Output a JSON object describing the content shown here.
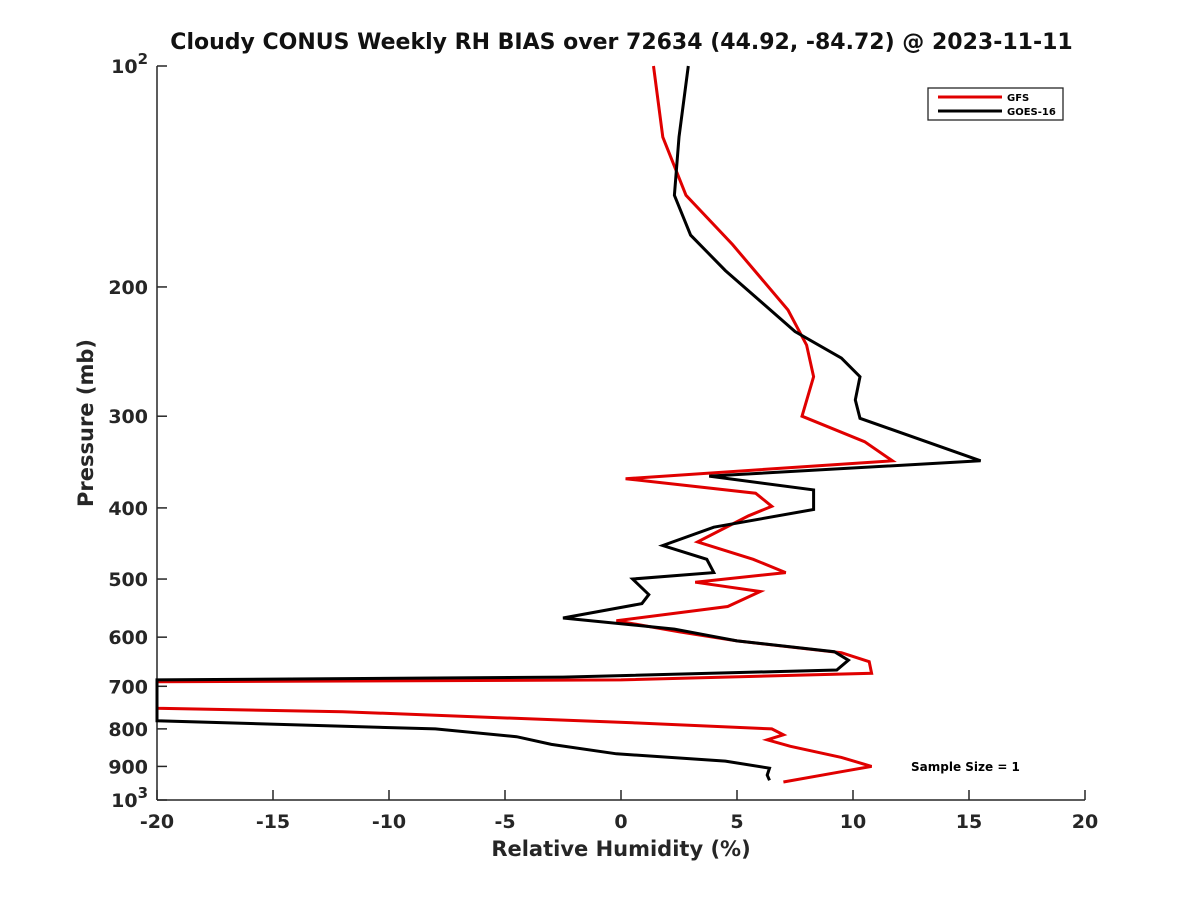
{
  "chart_data": {
    "type": "line",
    "title": "Cloudy CONUS Weekly RH BIAS over 72634 (44.92, -84.72) @ 2023-11-11",
    "xlabel": "Relative Humidity (%)",
    "ylabel": "Pressure (mb)",
    "xlim": [
      -20,
      20
    ],
    "ylim": [
      100,
      1000
    ],
    "y_scale": "log",
    "y_inverted": true,
    "grid": false,
    "legend_position": "top-right",
    "x_ticks": [
      "-20",
      "-15",
      "-10",
      "-5",
      "0",
      "5",
      "10",
      "15",
      "20"
    ],
    "y_ticks": [
      {
        "value": 100,
        "base": "10",
        "exp": "2"
      },
      {
        "value": 200,
        "label": "200"
      },
      {
        "value": 300,
        "label": "300"
      },
      {
        "value": 400,
        "label": "400"
      },
      {
        "value": 500,
        "label": "500"
      },
      {
        "value": 600,
        "label": "600"
      },
      {
        "value": 700,
        "label": "700"
      },
      {
        "value": 800,
        "label": "800"
      },
      {
        "value": 900,
        "label": "900"
      },
      {
        "value": 1000,
        "base": "10",
        "exp": "3"
      }
    ],
    "annotation": "Sample Size = 1",
    "series": [
      {
        "name": "GFS",
        "color": "#e00000",
        "points": [
          {
            "x": 1.4,
            "y": 100
          },
          {
            "x": 1.8,
            "y": 125
          },
          {
            "x": 2.8,
            "y": 150
          },
          {
            "x": 4.8,
            "y": 175
          },
          {
            "x": 7.2,
            "y": 215
          },
          {
            "x": 8.0,
            "y": 240
          },
          {
            "x": 8.3,
            "y": 265
          },
          {
            "x": 7.8,
            "y": 300
          },
          {
            "x": 10.5,
            "y": 325
          },
          {
            "x": 11.7,
            "y": 345
          },
          {
            "x": 0.2,
            "y": 365
          },
          {
            "x": 5.8,
            "y": 382
          },
          {
            "x": 6.5,
            "y": 398
          },
          {
            "x": 5.5,
            "y": 410
          },
          {
            "x": 3.3,
            "y": 445
          },
          {
            "x": 5.7,
            "y": 470
          },
          {
            "x": 7.1,
            "y": 490
          },
          {
            "x": 3.2,
            "y": 505
          },
          {
            "x": 6.0,
            "y": 520
          },
          {
            "x": 4.6,
            "y": 545
          },
          {
            "x": -0.2,
            "y": 570
          },
          {
            "x": 2.5,
            "y": 590
          },
          {
            "x": 5.0,
            "y": 607
          },
          {
            "x": 9.5,
            "y": 630
          },
          {
            "x": 10.7,
            "y": 648
          },
          {
            "x": 10.8,
            "y": 672
          },
          {
            "x": 0.0,
            "y": 686
          },
          {
            "x": -20.0,
            "y": 690
          },
          {
            "x": -20.0,
            "y": 750
          },
          {
            "x": -12.0,
            "y": 758
          },
          {
            "x": 0.5,
            "y": 785
          },
          {
            "x": 6.5,
            "y": 800
          },
          {
            "x": 7.0,
            "y": 815
          },
          {
            "x": 6.3,
            "y": 828
          },
          {
            "x": 7.3,
            "y": 845
          },
          {
            "x": 9.5,
            "y": 875
          },
          {
            "x": 10.8,
            "y": 900
          },
          {
            "x": 9.5,
            "y": 915
          },
          {
            "x": 7.0,
            "y": 945
          }
        ]
      },
      {
        "name": "GOES-16",
        "color": "#000000",
        "points": [
          {
            "x": 2.9,
            "y": 100
          },
          {
            "x": 2.5,
            "y": 125
          },
          {
            "x": 2.3,
            "y": 150
          },
          {
            "x": 3.0,
            "y": 170
          },
          {
            "x": 4.5,
            "y": 190
          },
          {
            "x": 7.5,
            "y": 230
          },
          {
            "x": 9.5,
            "y": 250
          },
          {
            "x": 10.3,
            "y": 265
          },
          {
            "x": 10.1,
            "y": 285
          },
          {
            "x": 10.3,
            "y": 302
          },
          {
            "x": 15.5,
            "y": 345
          },
          {
            "x": 3.8,
            "y": 362
          },
          {
            "x": 8.3,
            "y": 378
          },
          {
            "x": 8.3,
            "y": 402
          },
          {
            "x": 4.0,
            "y": 425
          },
          {
            "x": 1.8,
            "y": 450
          },
          {
            "x": 3.7,
            "y": 470
          },
          {
            "x": 4.0,
            "y": 490
          },
          {
            "x": 0.5,
            "y": 500
          },
          {
            "x": 1.2,
            "y": 525
          },
          {
            "x": 0.9,
            "y": 540
          },
          {
            "x": -2.5,
            "y": 565
          },
          {
            "x": 2.3,
            "y": 585
          },
          {
            "x": 5.0,
            "y": 607
          },
          {
            "x": 9.2,
            "y": 628
          },
          {
            "x": 9.8,
            "y": 645
          },
          {
            "x": 9.3,
            "y": 665
          },
          {
            "x": -2.5,
            "y": 680
          },
          {
            "x": -20.0,
            "y": 686
          },
          {
            "x": -20.0,
            "y": 780
          },
          {
            "x": -8.0,
            "y": 800
          },
          {
            "x": -4.5,
            "y": 820
          },
          {
            "x": -3.0,
            "y": 840
          },
          {
            "x": -0.2,
            "y": 865
          },
          {
            "x": 4.5,
            "y": 885
          },
          {
            "x": 6.4,
            "y": 905
          },
          {
            "x": 6.3,
            "y": 925
          },
          {
            "x": 6.4,
            "y": 940
          }
        ]
      }
    ]
  }
}
